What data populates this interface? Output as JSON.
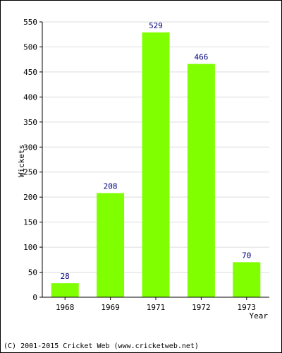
{
  "chart_data": {
    "type": "bar",
    "categories": [
      "1968",
      "1969",
      "1971",
      "1972",
      "1973"
    ],
    "values": [
      28,
      208,
      529,
      466,
      70
    ],
    "data_labels": [
      "28",
      "208",
      "529",
      "466",
      "70"
    ],
    "xlabel": "Year",
    "ylabel": "Wickets",
    "ylim": [
      0,
      550
    ],
    "yticks": [
      "0",
      "50",
      "100",
      "150",
      "200",
      "250",
      "300",
      "350",
      "400",
      "450",
      "500",
      "550"
    ],
    "grid": true,
    "bar_color": "#80ff00",
    "label_color": "#000080",
    "grid_color": "#dddddd"
  },
  "footer": {
    "copyright": "(C) 2001-2015 Cricket Web (www.cricketweb.net)"
  }
}
